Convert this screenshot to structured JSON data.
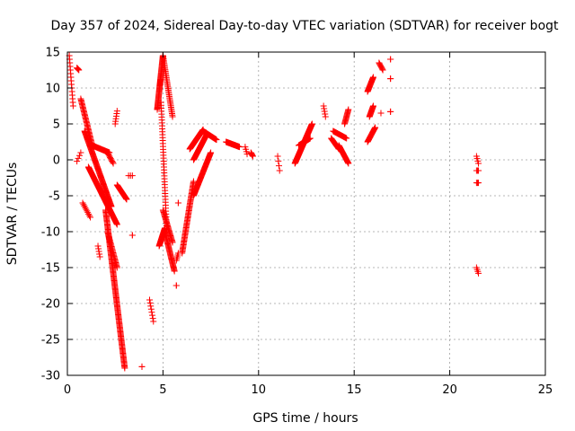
{
  "chart_data": {
    "type": "scatter",
    "title": "Day 357 of 2024, Sidereal Day-to-day VTEC variation (SDTVAR) for receiver bogt",
    "xlabel": "GPS time / hours",
    "ylabel": "SDTVAR / TECUs",
    "xlim": [
      0,
      25
    ],
    "ylim": [
      -30,
      15
    ],
    "xticks": [
      0,
      5,
      10,
      15,
      20,
      25
    ],
    "yticks": [
      -30,
      -25,
      -20,
      -15,
      -10,
      -5,
      0,
      5,
      10,
      15
    ],
    "grid": true,
    "marker": "+",
    "color": "#ff0000",
    "segments": [
      {
        "x": [
          0.1,
          0.3
        ],
        "y": [
          14.5,
          7.5
        ],
        "n": 15
      },
      {
        "x": [
          0.5,
          0.6
        ],
        "y": [
          12.8,
          12.5
        ],
        "n": 5
      },
      {
        "x": [
          0.5,
          0.7
        ],
        "y": [
          -0.2,
          1.0
        ],
        "n": 4
      },
      {
        "x": [
          0.7,
          1.3
        ],
        "y": [
          8.5,
          2.0
        ],
        "n": 40
      },
      {
        "x": [
          0.8,
          1.2
        ],
        "y": [
          -6.0,
          -8.0
        ],
        "n": 10
      },
      {
        "x": [
          0.9,
          2.3
        ],
        "y": [
          4.0,
          -6.5
        ],
        "n": 90
      },
      {
        "x": [
          1.1,
          2.6
        ],
        "y": [
          -1.0,
          -9.0
        ],
        "n": 90
      },
      {
        "x": [
          1.3,
          2.2
        ],
        "y": [
          2.0,
          1.0
        ],
        "n": 35
      },
      {
        "x": [
          2.1,
          2.4
        ],
        "y": [
          1.0,
          -0.5
        ],
        "n": 10
      },
      {
        "x": [
          1.6,
          1.7
        ],
        "y": [
          -12.0,
          -13.5
        ],
        "n": 5
      },
      {
        "x": [
          2.0,
          3.0
        ],
        "y": [
          -7.0,
          -29.0
        ],
        "n": 140
      },
      {
        "x": [
          2.1,
          2.6
        ],
        "y": [
          -10.0,
          -15.0
        ],
        "n": 30
      },
      {
        "x": [
          2.5,
          2.6
        ],
        "y": [
          5.0,
          6.8
        ],
        "n": 6
      },
      {
        "x": [
          2.6,
          3.1
        ],
        "y": [
          -3.5,
          -5.5
        ],
        "n": 25
      },
      {
        "x": [
          3.2,
          3.4
        ],
        "y": [
          -2.2,
          -2.2
        ],
        "n": 3
      },
      {
        "x": [
          3.4,
          3.4
        ],
        "y": [
          -10.5,
          -10.5
        ],
        "n": 2
      },
      {
        "x": [
          3.9,
          3.9
        ],
        "y": [
          -28.8,
          -28.8
        ],
        "n": 2
      },
      {
        "x": [
          4.3,
          4.5
        ],
        "y": [
          -19.5,
          -22.5
        ],
        "n": 8
      },
      {
        "x": [
          4.7,
          5.0
        ],
        "y": [
          7.0,
          14.5
        ],
        "n": 60
      },
      {
        "x": [
          4.8,
          5.1
        ],
        "y": [
          -12.0,
          -9.5
        ],
        "n": 25
      },
      {
        "x": [
          5.0,
          5.5
        ],
        "y": [
          14.5,
          6.0
        ],
        "n": 40
      },
      {
        "x": [
          4.9,
          5.2
        ],
        "y": [
          8.0,
          -10.0
        ],
        "n": 45
      },
      {
        "x": [
          5.0,
          5.5
        ],
        "y": [
          -7.0,
          -11.5
        ],
        "n": 30
      },
      {
        "x": [
          5.1,
          5.6
        ],
        "y": [
          -10.0,
          -15.5
        ],
        "n": 40
      },
      {
        "x": [
          5.7,
          5.8
        ],
        "y": [
          -14.0,
          -13.0
        ],
        "n": 5
      },
      {
        "x": [
          5.7,
          5.7
        ],
        "y": [
          -17.5,
          -17.5
        ],
        "n": 2
      },
      {
        "x": [
          5.8,
          5.8
        ],
        "y": [
          -6.0,
          -6.0
        ],
        "n": 2
      },
      {
        "x": [
          6.0,
          6.6
        ],
        "y": [
          -13.0,
          -3.0
        ],
        "n": 60
      },
      {
        "x": [
          6.4,
          7.1
        ],
        "y": [
          1.5,
          4.2
        ],
        "n": 50
      },
      {
        "x": [
          6.6,
          7.5
        ],
        "y": [
          -5.0,
          1.0
        ],
        "n": 55
      },
      {
        "x": [
          6.6,
          7.3
        ],
        "y": [
          0.0,
          3.6
        ],
        "n": 45
      },
      {
        "x": [
          7.1,
          7.8
        ],
        "y": [
          4.0,
          2.8
        ],
        "n": 30
      },
      {
        "x": [
          8.3,
          9.0
        ],
        "y": [
          2.5,
          1.8
        ],
        "n": 30
      },
      {
        "x": [
          9.3,
          9.4
        ],
        "y": [
          1.8,
          0.8
        ],
        "n": 4
      },
      {
        "x": [
          9.6,
          9.7
        ],
        "y": [
          1.0,
          0.5
        ],
        "n": 6
      },
      {
        "x": [
          11.0,
          11.1
        ],
        "y": [
          0.5,
          -1.5
        ],
        "n": 4
      },
      {
        "x": [
          11.9,
          12.8
        ],
        "y": [
          -0.5,
          5.0
        ],
        "n": 80
      },
      {
        "x": [
          12.1,
          12.7
        ],
        "y": [
          2.0,
          3.0
        ],
        "n": 25
      },
      {
        "x": [
          13.4,
          13.5
        ],
        "y": [
          7.5,
          6.0
        ],
        "n": 5
      },
      {
        "x": [
          13.8,
          14.2
        ],
        "y": [
          3.0,
          1.5
        ],
        "n": 15
      },
      {
        "x": [
          13.9,
          14.6
        ],
        "y": [
          4.0,
          3.0
        ],
        "n": 20
      },
      {
        "x": [
          14.2,
          14.7
        ],
        "y": [
          2.0,
          -0.5
        ],
        "n": 25
      },
      {
        "x": [
          14.5,
          14.7
        ],
        "y": [
          5.0,
          7.0
        ],
        "n": 15
      },
      {
        "x": [
          15.7,
          16.0
        ],
        "y": [
          9.5,
          11.5
        ],
        "n": 20
      },
      {
        "x": [
          15.8,
          16.0
        ],
        "y": [
          6.0,
          7.5
        ],
        "n": 15
      },
      {
        "x": [
          15.7,
          16.1
        ],
        "y": [
          2.5,
          4.5
        ],
        "n": 20
      },
      {
        "x": [
          16.3,
          16.5
        ],
        "y": [
          13.5,
          12.5
        ],
        "n": 8
      },
      {
        "x": [
          16.4,
          16.4
        ],
        "y": [
          6.5,
          6.5
        ],
        "n": 2
      },
      {
        "x": [
          16.9,
          16.9
        ],
        "y": [
          14.0,
          14.0
        ],
        "n": 2
      },
      {
        "x": [
          16.9,
          16.9
        ],
        "y": [
          11.3,
          11.3
        ],
        "n": 2
      },
      {
        "x": [
          16.9,
          16.9
        ],
        "y": [
          6.7,
          6.7
        ],
        "n": 2
      },
      {
        "x": [
          21.4,
          21.5
        ],
        "y": [
          0.5,
          -0.5
        ],
        "n": 4
      },
      {
        "x": [
          21.4,
          21.5
        ],
        "y": [
          -1.5,
          -1.5
        ],
        "n": 3
      },
      {
        "x": [
          21.4,
          21.5
        ],
        "y": [
          -3.2,
          -3.2
        ],
        "n": 3
      },
      {
        "x": [
          21.4,
          21.5
        ],
        "y": [
          -15.0,
          -15.8
        ],
        "n": 4
      }
    ]
  }
}
